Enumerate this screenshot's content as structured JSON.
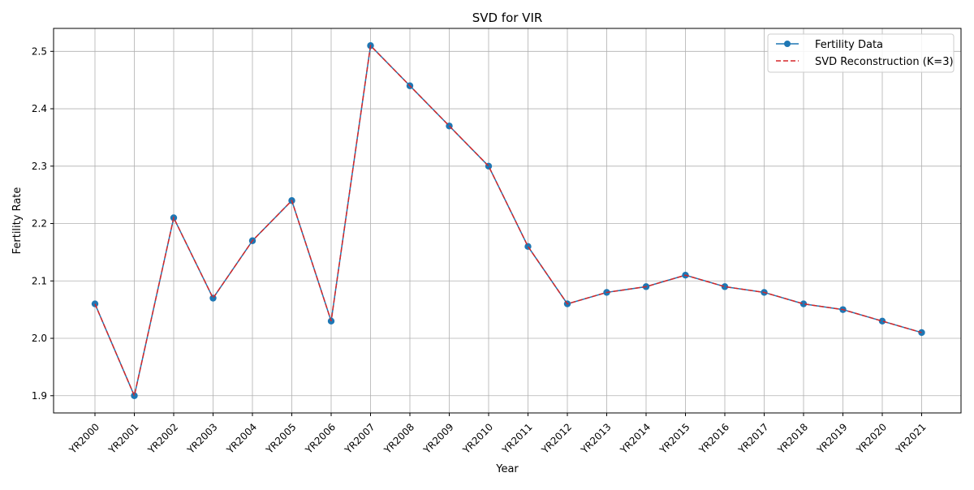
{
  "chart_data": {
    "type": "line",
    "title": "SVD for VIR",
    "xlabel": "Year",
    "ylabel": "Fertility Rate",
    "categories": [
      "YR2000",
      "YR2001",
      "YR2002",
      "YR2003",
      "YR2004",
      "YR2005",
      "YR2006",
      "YR2007",
      "YR2008",
      "YR2009",
      "YR2010",
      "YR2011",
      "YR2012",
      "YR2013",
      "YR2014",
      "YR2015",
      "YR2016",
      "YR2017",
      "YR2018",
      "YR2019",
      "YR2020",
      "YR2021"
    ],
    "ylim": [
      1.87,
      2.54
    ],
    "yticks": [
      1.9,
      2.0,
      2.1,
      2.2,
      2.3,
      2.4,
      2.5
    ],
    "ytick_labels": [
      "1.9",
      "2.0",
      "2.1",
      "2.2",
      "2.3",
      "2.4",
      "2.5"
    ],
    "grid": true,
    "legend_position": "top-right",
    "series": [
      {
        "name": "Fertility Data",
        "style": "solid line with circle markers",
        "color": "#1f77b4",
        "values": [
          2.06,
          1.9,
          2.21,
          2.07,
          2.17,
          2.24,
          2.03,
          2.51,
          2.44,
          2.37,
          2.3,
          2.16,
          2.06,
          2.08,
          2.09,
          2.11,
          2.09,
          2.08,
          2.06,
          2.05,
          2.03,
          2.01
        ]
      },
      {
        "name": "SVD Reconstruction (K=3)",
        "style": "dashed line",
        "color": "#d62728",
        "values": [
          2.06,
          1.9,
          2.21,
          2.07,
          2.17,
          2.24,
          2.03,
          2.51,
          2.44,
          2.37,
          2.3,
          2.16,
          2.06,
          2.08,
          2.09,
          2.11,
          2.09,
          2.08,
          2.06,
          2.05,
          2.03,
          2.01
        ]
      }
    ]
  }
}
